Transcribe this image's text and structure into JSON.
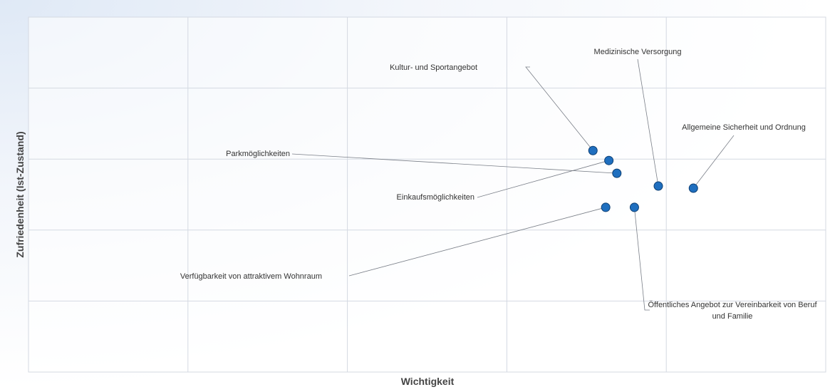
{
  "chart_data": {
    "type": "scatter",
    "x_label": "Wichtigkeit",
    "y_label": "Zufriedenheit (Ist-Zustand)",
    "labels": [
      "Kultur- und Sportangebot",
      "Einkaufsmöglichkeiten",
      "Parkmöglichkeiten",
      "Medizinische Versorgung",
      "Allgemeine Sicherheit und Ordnung",
      "Verfügbarkeit von attraktivem Wohnraum",
      "Öffentliches Angebot zur Vereinbarkeit von Beruf und Familie"
    ],
    "x": [
      3.54,
      3.64,
      3.69,
      3.95,
      4.17,
      3.62,
      3.8
    ],
    "values": [
      3.12,
      2.98,
      2.8,
      2.62,
      2.59,
      2.32,
      2.32
    ],
    "color": "#1f6fbf",
    "xlim": [
      0,
      5
    ],
    "ylim": [
      0,
      5
    ],
    "xticks": [
      0,
      1,
      2,
      3,
      4,
      5
    ],
    "yticks": [
      0,
      1,
      2,
      3,
      4,
      5
    ],
    "grid": true
  }
}
